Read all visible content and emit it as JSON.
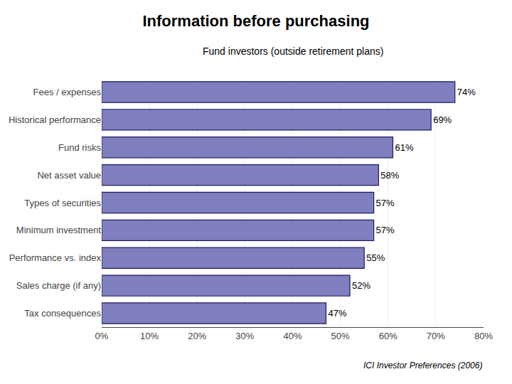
{
  "chart_data": {
    "type": "bar",
    "orientation": "horizontal",
    "title": "Information before purchasing",
    "subtitle": "Fund investors (outside retirement plans)",
    "annotations": [
      "ICI Investor Preferences (2006)"
    ],
    "categories": [
      "Tax consequences",
      "Sales charge (if any)",
      "Performance vs. index",
      "Minimum investment",
      "Types of securities",
      "Net asset value",
      "Fund risks",
      "Historical performance",
      "Fees / expenses"
    ],
    "values": [
      47,
      52,
      55,
      57,
      57,
      58,
      61,
      69,
      74
    ],
    "value_labels": [
      "47%",
      "52%",
      "55%",
      "57%",
      "57%",
      "58%",
      "61%",
      "69%",
      "74%"
    ],
    "data_labels": true,
    "color": "#8080C0",
    "xlim": [
      0,
      80
    ],
    "xticks": [
      {
        "value": 0,
        "label": "0%"
      },
      {
        "value": 10,
        "label": "10%"
      },
      {
        "value": 20,
        "label": "20%"
      },
      {
        "value": 30,
        "label": "30%"
      },
      {
        "value": 40,
        "label": "40%"
      },
      {
        "value": 50,
        "label": "50%"
      },
      {
        "value": 60,
        "label": "60%"
      },
      {
        "value": 70,
        "label": "70%"
      },
      {
        "value": 80,
        "label": "80%"
      }
    ],
    "grid": true
  }
}
